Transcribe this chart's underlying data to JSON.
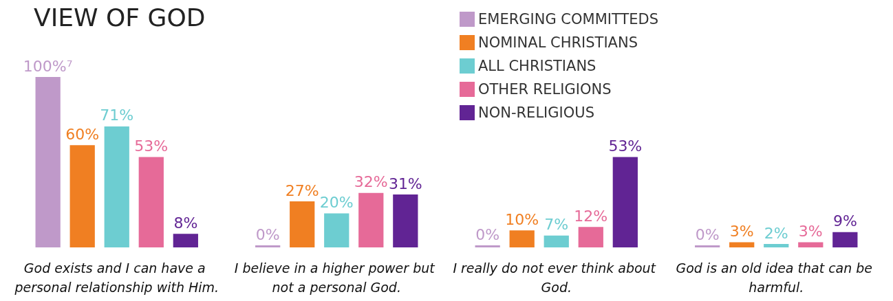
{
  "chart_data": {
    "type": "bar",
    "title": "VIEW OF GOD",
    "categories": [
      "God exists and I can have a personal relationship with Him.",
      "I believe in a higher power but not a personal God.",
      "I really do not ever think about God.",
      "God is an old idea that can be harmful."
    ],
    "series": [
      {
        "name": "EMERGING COMMITTEDS",
        "color": "#bf99c9",
        "values": [
          100,
          0,
          0,
          0
        ],
        "value_labels": [
          "100%⁷",
          "0%",
          "0%",
          "0%"
        ]
      },
      {
        "name": "NOMINAL CHRISTIANS",
        "color": "#f07f22",
        "values": [
          60,
          27,
          10,
          3
        ],
        "value_labels": [
          "60%",
          "27%",
          "10%",
          "3%"
        ]
      },
      {
        "name": "ALL CHRISTIANS",
        "color": "#6dcdd1",
        "values": [
          71,
          20,
          7,
          2
        ],
        "value_labels": [
          "71%",
          "20%",
          "7%",
          "2%"
        ]
      },
      {
        "name": "OTHER RELIGIONS",
        "color": "#e66a98",
        "values": [
          53,
          32,
          12,
          3
        ],
        "value_labels": [
          "53%",
          "32%",
          "12%",
          "3%"
        ]
      },
      {
        "name": "NON-RELIGIOUS",
        "color": "#612494",
        "values": [
          8,
          31,
          53,
          9
        ],
        "value_labels": [
          "8%",
          "31%",
          "53%",
          "9%"
        ]
      }
    ],
    "legend": "top right"
  }
}
